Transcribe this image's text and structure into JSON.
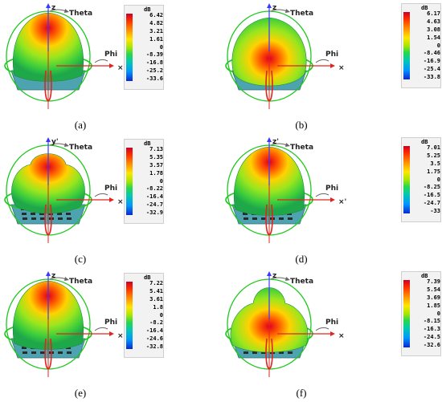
{
  "panels": [
    {
      "id": "a",
      "caption": "(a)",
      "unit": "dB",
      "ticks": [
        "6.42",
        "4.82",
        "3.21",
        "1.61",
        "0",
        "-8.39",
        "-16.8",
        "-25.2",
        "-33.6"
      ],
      "z_label": "z",
      "theta_label": "Theta",
      "phi_label": "Phi",
      "x_label": "×"
    },
    {
      "id": "b",
      "caption": "(b)",
      "unit": "dB",
      "ticks": [
        "6.17",
        "4.63",
        "3.08",
        "1.54",
        "0",
        "-8.46",
        "-16.9",
        "-25.4",
        "-33.8"
      ],
      "z_label": "z",
      "theta_label": "Theta",
      "phi_label": "Phi",
      "x_label": "×"
    },
    {
      "id": "c",
      "caption": "(c)",
      "unit": "dB",
      "ticks": [
        "7.13",
        "5.35",
        "3.57",
        "1.78",
        "0",
        "-8.22",
        "-16.4",
        "-24.7",
        "-32.9"
      ],
      "z_label": "y'",
      "theta_label": "Theta",
      "phi_label": "Phi",
      "x_label": "×'"
    },
    {
      "id": "d",
      "caption": "(d)",
      "unit": "dB",
      "ticks": [
        "7.01",
        "5.25",
        "3.5",
        "1.75",
        "0",
        "-8.25",
        "-16.5",
        "-24.7",
        "-33"
      ],
      "z_label": "z'",
      "theta_label": "Theta",
      "phi_label": "Phi",
      "x_label": "×'"
    },
    {
      "id": "e",
      "caption": "(e)",
      "unit": "dB",
      "ticks": [
        "7.22",
        "5.41",
        "3.61",
        "1.8",
        "0",
        "-8.2",
        "-16.4",
        "-24.6",
        "-32.8"
      ],
      "z_label": "z",
      "theta_label": "Theta",
      "phi_label": "Phi",
      "x_label": "×"
    },
    {
      "id": "f",
      "caption": "(f)",
      "unit": "dB",
      "ticks": [
        "7.39",
        "5.54",
        "3.69",
        "1.85",
        "0",
        "-8.15",
        "-16.3",
        "-24.5",
        "-32.6"
      ],
      "z_label": "z",
      "theta_label": "Theta",
      "phi_label": "Phi",
      "x_label": "×"
    }
  ],
  "colors": {
    "colormap": [
      "#c8002a",
      "#ff2a00",
      "#ff8c00",
      "#ffe600",
      "#a8e600",
      "#28d84a",
      "#00c8b4",
      "#0096ff",
      "#0a28d2"
    ],
    "theta_axis": "#3a3aff",
    "phi_axis": "#e0241e",
    "ring_green": "#1ec81e",
    "ring_red": "#e0241e",
    "ground_plane": "#3a9aa8"
  }
}
